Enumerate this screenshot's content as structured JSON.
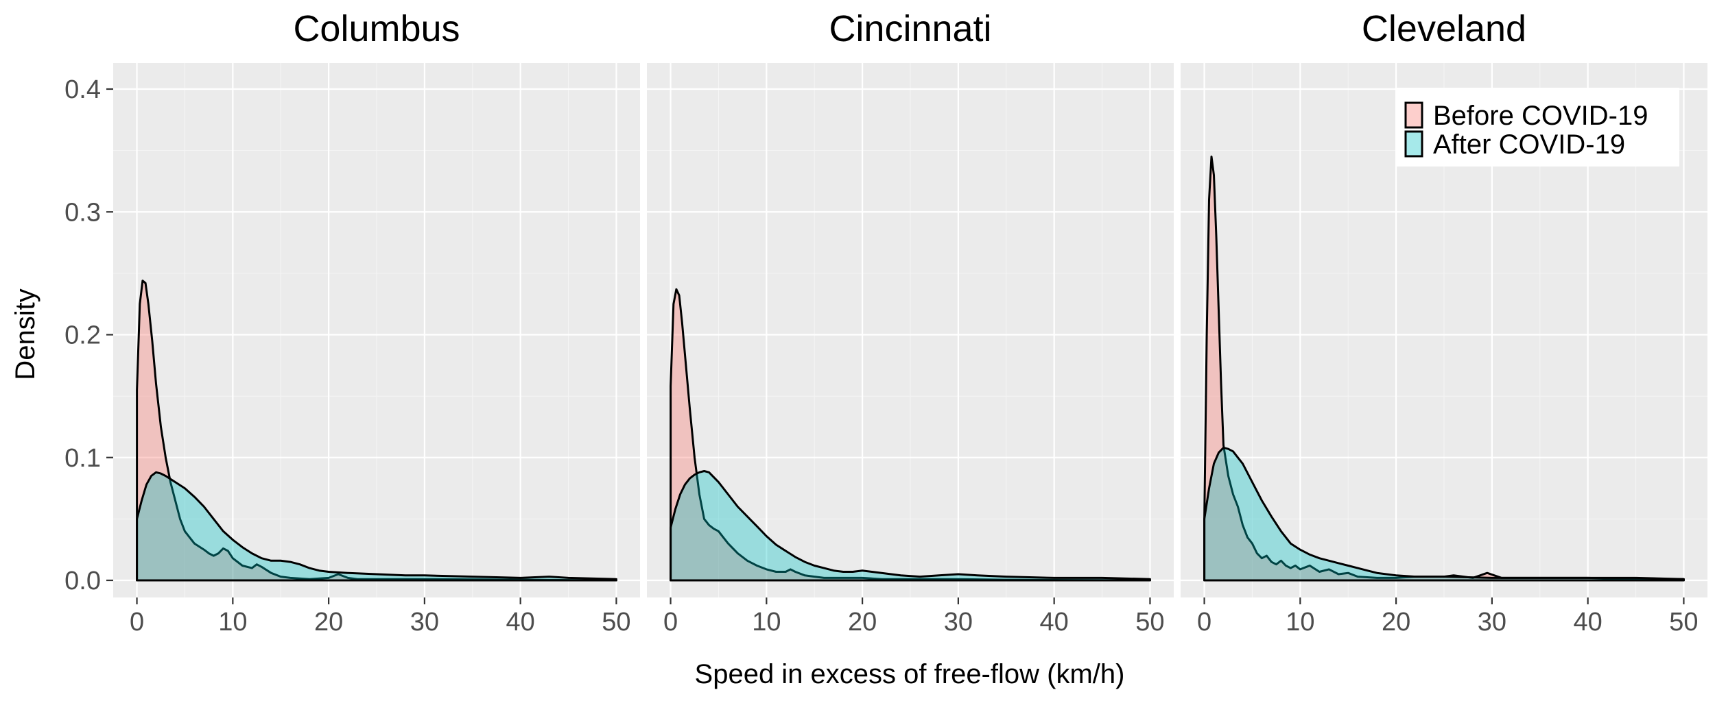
{
  "chart_data": {
    "type": "area",
    "xlabel": "Speed in excess of free-flow (km/h)",
    "ylabel": "Density",
    "xlim": [
      0,
      50
    ],
    "ylim": [
      0,
      0.4
    ],
    "xticks": [
      0,
      10,
      20,
      30,
      40,
      50
    ],
    "yticks": [
      0.0,
      0.1,
      0.2,
      0.3,
      0.4
    ],
    "ytick_labels": [
      "0.0",
      "0.1",
      "0.2",
      "0.3",
      "0.4"
    ],
    "grid": true,
    "legend_position": "top-right",
    "colors": {
      "Before COVID-19": "#f8766d",
      "After COVID-19": "#00bfc4",
      "panel_background": "#ebebeb"
    },
    "series_names": [
      "Before COVID-19",
      "After COVID-19"
    ],
    "facets": [
      {
        "title": "Columbus",
        "series": [
          {
            "name": "Before COVID-19",
            "x": [
              0,
              0.3,
              0.6,
              0.9,
              1.2,
              1.6,
              2,
              2.5,
              3,
              3.5,
              4,
              4.5,
              5,
              5.5,
              6,
              7,
              7.5,
              8,
              8.5,
              9,
              9.5,
              10,
              11,
              12,
              12.5,
              13,
              14,
              15,
              16,
              18,
              20,
              21,
              22,
              23,
              25,
              30,
              40,
              50
            ],
            "y": [
              0.155,
              0.225,
              0.244,
              0.242,
              0.225,
              0.195,
              0.16,
              0.125,
              0.1,
              0.08,
              0.065,
              0.05,
              0.04,
              0.035,
              0.03,
              0.025,
              0.022,
              0.02,
              0.022,
              0.026,
              0.024,
              0.018,
              0.012,
              0.01,
              0.013,
              0.011,
              0.006,
              0.003,
              0.002,
              0.001,
              0.002,
              0.005,
              0.002,
              0.001,
              0.001,
              0.001,
              0.0005,
              0
            ]
          },
          {
            "name": "After COVID-19",
            "x": [
              0,
              0.5,
              1,
              1.5,
              2,
              2.5,
              3,
              4,
              5,
              6,
              7,
              8,
              9,
              10,
              11,
              12,
              13,
              14,
              15,
              16,
              17,
              18,
              19,
              20,
              22,
              25,
              28,
              30,
              35,
              40,
              43,
              45,
              50
            ],
            "y": [
              0.05,
              0.065,
              0.078,
              0.085,
              0.088,
              0.087,
              0.085,
              0.08,
              0.075,
              0.068,
              0.06,
              0.05,
              0.04,
              0.033,
              0.027,
              0.022,
              0.018,
              0.016,
              0.016,
              0.015,
              0.013,
              0.01,
              0.008,
              0.007,
              0.006,
              0.005,
              0.004,
              0.004,
              0.003,
              0.002,
              0.003,
              0.002,
              0.001
            ]
          }
        ]
      },
      {
        "title": "Cincinnati",
        "series": [
          {
            "name": "Before COVID-19",
            "x": [
              0,
              0.3,
              0.6,
              0.9,
              1.2,
              1.6,
              2,
              2.5,
              3,
              3.5,
              4,
              4.5,
              5,
              5.5,
              6,
              7,
              8,
              9,
              10,
              11,
              12,
              12.5,
              13,
              14,
              15,
              16,
              18,
              20,
              22,
              25,
              30,
              35,
              40,
              50
            ],
            "y": [
              0.158,
              0.225,
              0.237,
              0.232,
              0.21,
              0.175,
              0.14,
              0.1,
              0.07,
              0.05,
              0.045,
              0.042,
              0.04,
              0.035,
              0.03,
              0.022,
              0.016,
              0.012,
              0.009,
              0.007,
              0.007,
              0.009,
              0.007,
              0.004,
              0.003,
              0.002,
              0.002,
              0.002,
              0.001,
              0.001,
              0.001,
              0.0005,
              0.0003,
              0
            ]
          },
          {
            "name": "After COVID-19",
            "x": [
              0,
              0.5,
              1,
              1.5,
              2,
              2.5,
              3,
              3.5,
              4,
              5,
              6,
              7,
              8,
              9,
              10,
              11,
              12,
              13,
              14,
              15,
              16,
              17,
              18,
              19,
              20,
              21,
              22,
              24,
              26,
              28,
              30,
              32,
              35,
              40,
              45,
              50
            ],
            "y": [
              0.043,
              0.058,
              0.07,
              0.078,
              0.083,
              0.086,
              0.088,
              0.089,
              0.088,
              0.08,
              0.07,
              0.06,
              0.052,
              0.044,
              0.036,
              0.029,
              0.024,
              0.019,
              0.015,
              0.012,
              0.01,
              0.008,
              0.007,
              0.007,
              0.008,
              0.007,
              0.006,
              0.004,
              0.003,
              0.004,
              0.005,
              0.004,
              0.003,
              0.002,
              0.002,
              0.001
            ]
          }
        ]
      },
      {
        "title": "Cleveland",
        "series": [
          {
            "name": "Before COVID-19",
            "x": [
              0,
              0.25,
              0.5,
              0.75,
              1,
              1.25,
              1.5,
              1.75,
              2,
              2.5,
              3,
              3.5,
              4,
              4.5,
              5,
              5.5,
              6,
              6.5,
              7,
              7.5,
              8,
              8.5,
              9,
              9.5,
              10,
              11,
              12,
              13,
              14,
              15,
              16,
              18,
              20,
              22,
              25,
              26,
              28,
              29.5,
              31,
              35,
              40,
              45,
              50
            ],
            "y": [
              0.05,
              0.2,
              0.31,
              0.345,
              0.33,
              0.28,
              0.22,
              0.16,
              0.11,
              0.085,
              0.07,
              0.06,
              0.045,
              0.035,
              0.03,
              0.022,
              0.018,
              0.02,
              0.015,
              0.013,
              0.016,
              0.012,
              0.01,
              0.012,
              0.009,
              0.012,
              0.007,
              0.009,
              0.005,
              0.006,
              0.003,
              0.002,
              0.002,
              0.003,
              0.003,
              0.004,
              0.002,
              0.006,
              0.002,
              0.002,
              0.002,
              0.001,
              0.001
            ]
          },
          {
            "name": "After COVID-19",
            "x": [
              0,
              0.5,
              1,
              1.5,
              2,
              2.5,
              3,
              3.5,
              4,
              5,
              6,
              7,
              8,
              9,
              10,
              11,
              12,
              13,
              14,
              15,
              16,
              17,
              18,
              20,
              22,
              25,
              30,
              35,
              40,
              45,
              50
            ],
            "y": [
              0.05,
              0.075,
              0.095,
              0.104,
              0.108,
              0.107,
              0.105,
              0.1,
              0.095,
              0.08,
              0.065,
              0.052,
              0.04,
              0.03,
              0.025,
              0.021,
              0.018,
              0.016,
              0.014,
              0.012,
              0.01,
              0.008,
              0.006,
              0.004,
              0.003,
              0.003,
              0.002,
              0.002,
              0.002,
              0.002,
              0.001
            ]
          }
        ]
      }
    ]
  }
}
